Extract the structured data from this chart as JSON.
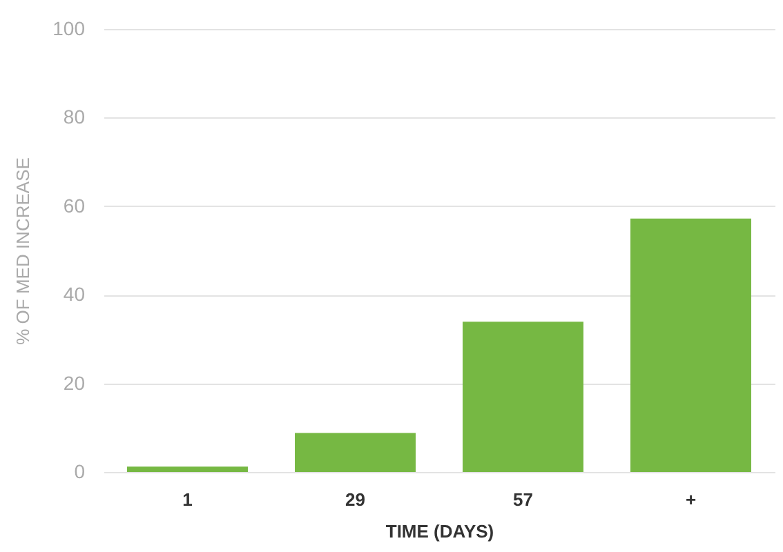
{
  "chart_data": {
    "type": "bar",
    "xlabel": "TIME (DAYS)",
    "ylabel": "% OF MED INCREASE",
    "categories": [
      "1",
      "29",
      "57",
      "+"
    ],
    "values": [
      1.2,
      8.8,
      33.9,
      57.2
    ],
    "color": "#76b843",
    "ylim": [
      0,
      100
    ],
    "yticks": [
      0,
      20,
      40,
      60,
      80,
      100
    ],
    "grid": "y"
  }
}
